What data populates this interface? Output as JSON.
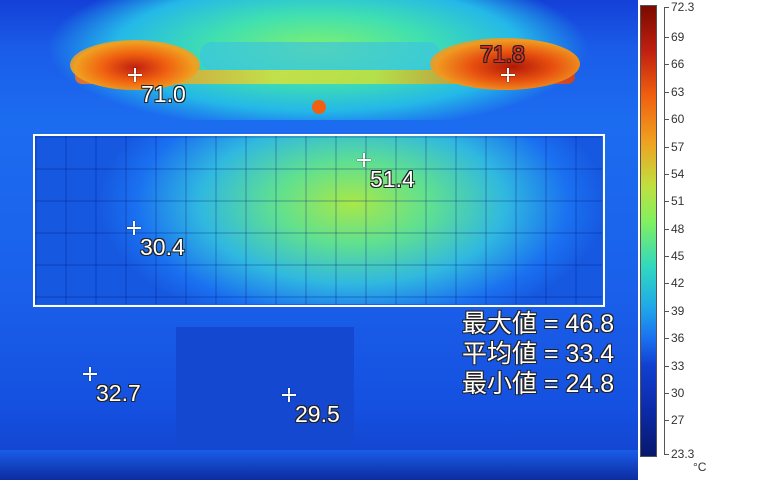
{
  "markers": [
    {
      "value": "71.0",
      "color": "#ffffff"
    },
    {
      "value": "71.8",
      "color": "#e03020"
    },
    {
      "value": "51.4",
      "color": "#ffffff"
    },
    {
      "value": "30.4",
      "color": "#ffffff"
    },
    {
      "value": "32.7",
      "color": "#ffffff"
    },
    {
      "value": "29.5",
      "color": "#ffffff"
    }
  ],
  "stats": {
    "max": "最大値 = 46.8",
    "avg": "平均値 = 33.4",
    "min": "最小値 = 24.8"
  },
  "colorbar": {
    "max": "72.3",
    "min": "23.3",
    "ticks": [
      "69",
      "66",
      "63",
      "60",
      "57",
      "54",
      "51",
      "48",
      "45",
      "42",
      "39",
      "36",
      "33",
      "30",
      "27"
    ],
    "unit": "°C",
    "palette": "rainbow"
  }
}
